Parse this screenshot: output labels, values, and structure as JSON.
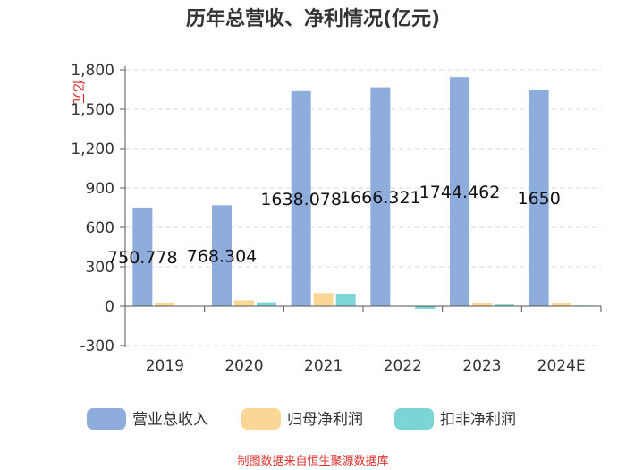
{
  "chart_data": {
    "type": "bar",
    "title": "历年总营收、净利情况(亿元)",
    "unit_label": "亿元",
    "categories": [
      "2019",
      "2020",
      "2021",
      "2022",
      "2023",
      "2024E"
    ],
    "series": [
      {
        "name": "营业总收入",
        "color": "#8eacdc",
        "values": [
          750.778,
          768.304,
          1638.078,
          1666.321,
          1744.462,
          1650
        ]
      },
      {
        "name": "归母净利润",
        "color": "#fbd795",
        "values": [
          26,
          45,
          100,
          3,
          22,
          22
        ]
      },
      {
        "name": "扣非净利润",
        "color": "#7dd4d4",
        "values": [
          3,
          30,
          95,
          -20,
          12,
          5
        ]
      }
    ],
    "data_labels": [
      "750.778",
      "768.304",
      "1638.078",
      "1666.321",
      "1744.462",
      "1650"
    ],
    "yticks": [
      "1,800",
      "1,500",
      "1,200",
      "900",
      "600",
      "300",
      "0",
      "-300"
    ],
    "ylim": [
      -300,
      1800
    ],
    "legend_position": "bottom",
    "source": "制图数据来自恒生聚源数据库"
  }
}
